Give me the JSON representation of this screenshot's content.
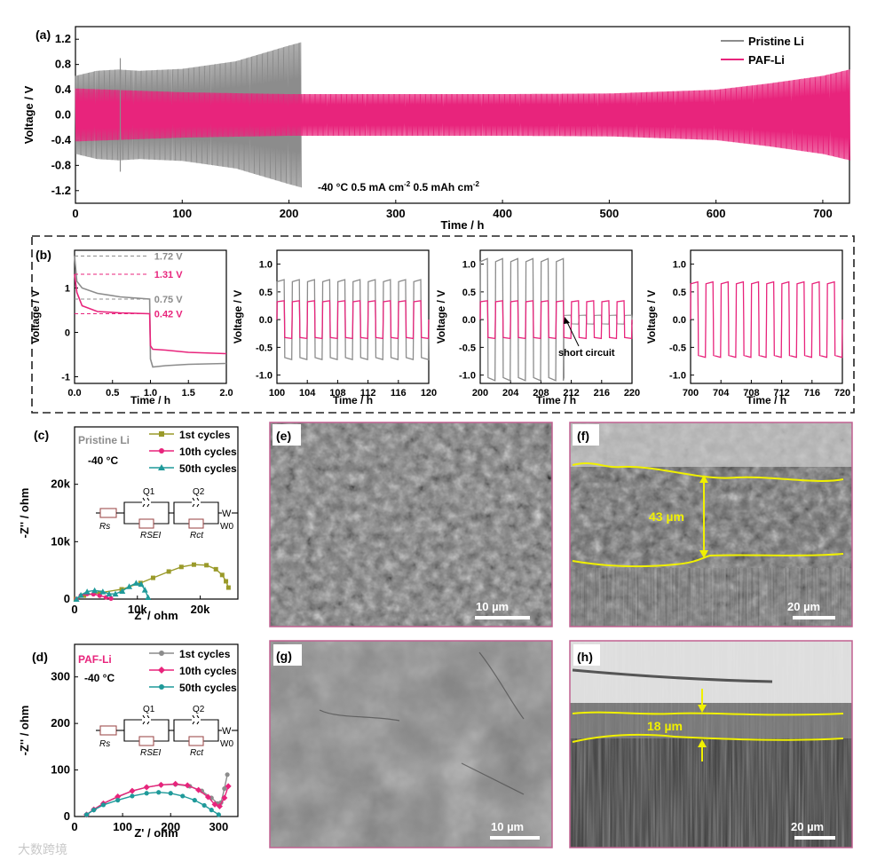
{
  "panels": {
    "a": {
      "label": "(a)",
      "note_prefix": "-40 °C 0.5 mA cm",
      "note_exp1": "-2",
      "note_mid": " 0.5 mAh cm",
      "note_exp2": "-2"
    },
    "b": {
      "label": "(b)",
      "short_circuit_label": "short circuit"
    },
    "c": {
      "label": "(c)",
      "sample": "Pristine Li",
      "temp": "-40 °C"
    },
    "d": {
      "label": "(d)",
      "sample": "PAF-Li",
      "temp": "-40 °C"
    },
    "e": {
      "label": "(e)",
      "scale": "10 µm"
    },
    "f": {
      "label": "(f)",
      "scale": "20 µm",
      "thickness": "43 µm"
    },
    "g": {
      "label": "(g)",
      "scale": "10 µm"
    },
    "h": {
      "label": "(h)",
      "scale": "20 µm",
      "thickness": "18 µm"
    }
  },
  "circuit": {
    "q1": "Q1",
    "q2": "Q2",
    "rs": "Rs",
    "rsei": "RSEI",
    "rct": "Rct",
    "w": "W0"
  },
  "watermark": "大数跨境",
  "colors": {
    "pristine": "#8c8c8c",
    "paf": "#e8247c",
    "olive": "#9a9a2a",
    "teal": "#1f9a9a",
    "yellow": "#f0f000"
  },
  "chart_data": [
    {
      "id": "a",
      "type": "line",
      "xlabel": "Time / h",
      "ylabel": "Voltage / V",
      "xlim": [
        0,
        725
      ],
      "ylim": [
        -1.4,
        1.4
      ],
      "xticks": [
        0,
        100,
        200,
        300,
        400,
        500,
        600,
        700
      ],
      "yticks": [
        -1.2,
        -0.8,
        -0.4,
        0.0,
        0.4,
        0.8,
        1.2
      ],
      "series": [
        {
          "name": "Pristine Li",
          "envelope_t": [
            0,
            20,
            40,
            60,
            100,
            150,
            200,
            211
          ],
          "envelope_v": [
            0.62,
            0.7,
            0.72,
            0.7,
            0.73,
            0.85,
            1.1,
            1.15
          ]
        },
        {
          "name": "PAF-Li",
          "envelope_t": [
            0,
            100,
            200,
            300,
            400,
            500,
            600,
            650,
            700,
            725
          ],
          "envelope_v": [
            0.42,
            0.36,
            0.33,
            0.33,
            0.33,
            0.34,
            0.4,
            0.5,
            0.62,
            0.72
          ]
        }
      ]
    },
    {
      "id": "b1",
      "type": "line",
      "xlabel": "Time / h",
      "ylabel": "Voltage / V",
      "xlim": [
        0,
        2.0
      ],
      "ylim": [
        -1.15,
        1.85
      ],
      "xticks": [
        0.0,
        0.5,
        1.0,
        1.5,
        2.0
      ],
      "yticks": [
        -1,
        0,
        1
      ],
      "series": [
        {
          "name": "Pristine Li",
          "x": [
            0,
            0.03,
            0.1,
            0.3,
            0.6,
            0.99,
            1.0,
            1.03,
            1.2,
            1.5,
            2.0
          ],
          "y": [
            1.72,
            1.15,
            1.0,
            0.88,
            0.8,
            0.75,
            -0.6,
            -0.78,
            -0.75,
            -0.72,
            -0.7
          ]
        },
        {
          "name": "PAF-Li",
          "x": [
            0,
            0.03,
            0.1,
            0.3,
            0.6,
            0.99,
            1.0,
            1.03,
            1.2,
            1.5,
            2.0
          ],
          "y": [
            1.31,
            0.9,
            0.6,
            0.47,
            0.44,
            0.42,
            -0.3,
            -0.38,
            -0.4,
            -0.45,
            -0.48
          ]
        }
      ],
      "annotations": [
        {
          "text": "1.72 V",
          "y": 1.72,
          "color": "pristine"
        },
        {
          "text": "1.31 V",
          "y": 1.31,
          "color": "paf"
        },
        {
          "text": "0.75 V",
          "y": 0.75,
          "color": "pristine"
        },
        {
          "text": "0.42 V",
          "y": 0.42,
          "color": "paf"
        }
      ]
    },
    {
      "id": "b2",
      "type": "line",
      "xlabel": "Time / h",
      "ylabel": "Voltage / V",
      "xlim": [
        100,
        120
      ],
      "ylim": [
        -1.15,
        1.25
      ],
      "xticks": [
        100,
        104,
        108,
        112,
        116,
        120
      ],
      "yticks": [
        -1.0,
        -0.5,
        0.0,
        0.5,
        1.0
      ],
      "series": [
        {
          "name": "Pristine Li",
          "amplitude": 0.72
        },
        {
          "name": "PAF-Li",
          "amplitude": 0.34
        }
      ]
    },
    {
      "id": "b3",
      "type": "line",
      "xlabel": "Time / h",
      "ylabel": "Voltage / V",
      "xlim": [
        200,
        220
      ],
      "ylim": [
        -1.15,
        1.25
      ],
      "xticks": [
        200,
        204,
        208,
        212,
        216,
        220
      ],
      "yticks": [
        -1.0,
        -0.5,
        0.0,
        0.5,
        1.0
      ],
      "series": [
        {
          "name": "Pristine Li",
          "amplitude": 1.1,
          "short_circuit_at": 211
        },
        {
          "name": "PAF-Li",
          "amplitude": 0.34
        }
      ]
    },
    {
      "id": "b4",
      "type": "line",
      "xlabel": "Time / h",
      "ylabel": "Voltage / V",
      "xlim": [
        700,
        720
      ],
      "ylim": [
        -1.15,
        1.25
      ],
      "xticks": [
        700,
        704,
        708,
        712,
        716,
        720
      ],
      "yticks": [
        -1.0,
        -0.5,
        0.0,
        0.5,
        1.0
      ],
      "series": [
        {
          "name": "PAF-Li",
          "amplitude": 0.68
        }
      ]
    },
    {
      "id": "c",
      "type": "scatter",
      "xlabel": "Z' / ohm",
      "ylabel": "-Z'' / ohm",
      "xlim": [
        0,
        26000
      ],
      "ylim": [
        0,
        30000
      ],
      "xticks": [
        0,
        10000,
        20000
      ],
      "xtick_labels": [
        "0",
        "10k",
        "20k"
      ],
      "yticks": [
        0,
        10000,
        20000
      ],
      "ytick_labels": [
        "0",
        "10k",
        "20k"
      ],
      "series": [
        {
          "name": "1st cycles",
          "x": [
            200,
            1500,
            4000,
            7500,
            10500,
            12500,
            15000,
            17000,
            19000,
            21000,
            22500,
            23500,
            24100,
            24500
          ],
          "y": [
            0,
            600,
            1100,
            1700,
            2800,
            3700,
            4800,
            5600,
            6000,
            5900,
            5200,
            4200,
            3100,
            2000
          ]
        },
        {
          "name": "10th cycles",
          "x": [
            300,
            1000,
            2000,
            3000,
            4000,
            5000,
            5800
          ],
          "y": [
            0,
            600,
            900,
            850,
            600,
            300,
            100
          ]
        },
        {
          "name": "50th cycles",
          "x": [
            300,
            1000,
            2000,
            3200,
            4500,
            5500,
            6500,
            7600,
            8700,
            9800,
            10600,
            11200,
            11700
          ],
          "y": [
            0,
            700,
            1300,
            1500,
            1300,
            900,
            900,
            1400,
            2200,
            2800,
            2600,
            1600,
            300
          ]
        }
      ]
    },
    {
      "id": "d",
      "type": "scatter",
      "xlabel": "Z' / ohm",
      "ylabel": "-Z'' / ohm",
      "xlim": [
        0,
        340
      ],
      "ylim": [
        0,
        370
      ],
      "xticks": [
        0,
        100,
        200,
        300
      ],
      "yticks": [
        0,
        100,
        200,
        300
      ],
      "series": [
        {
          "name": "1st cycles",
          "x": [
            25,
            40,
            60,
            90,
            120,
            150,
            180,
            210,
            240,
            265,
            285,
            298,
            305,
            312,
            318
          ],
          "y": [
            4,
            15,
            28,
            42,
            55,
            63,
            68,
            69,
            65,
            55,
            40,
            28,
            30,
            60,
            90
          ]
        },
        {
          "name": "10th cycles",
          "x": [
            25,
            40,
            60,
            90,
            120,
            150,
            180,
            210,
            235,
            258,
            278,
            292,
            302,
            312,
            320
          ],
          "y": [
            4,
            15,
            28,
            43,
            55,
            63,
            68,
            70,
            67,
            57,
            42,
            26,
            22,
            40,
            65
          ]
        },
        {
          "name": "50th cycles",
          "x": [
            25,
            40,
            60,
            90,
            120,
            150,
            175,
            200,
            225,
            250,
            270,
            285,
            300
          ],
          "y": [
            4,
            14,
            25,
            35,
            44,
            50,
            52,
            50,
            44,
            35,
            24,
            14,
            4
          ]
        }
      ]
    }
  ]
}
